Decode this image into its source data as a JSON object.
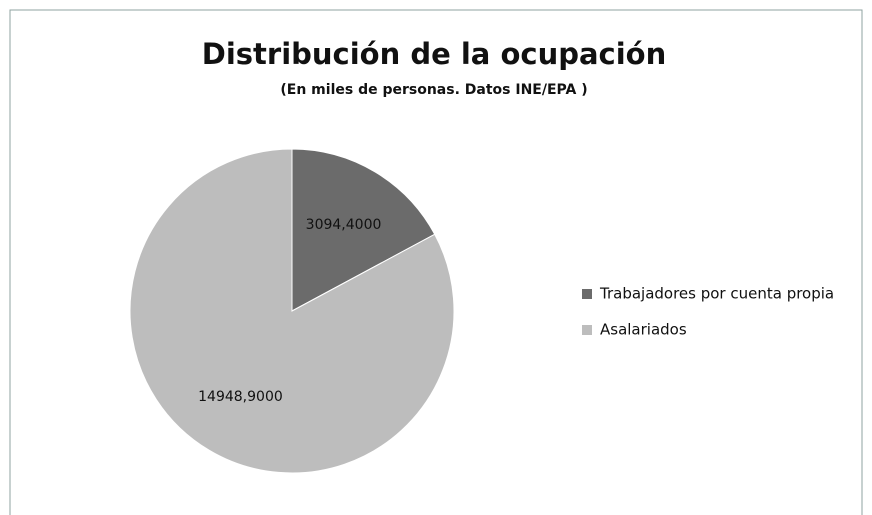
{
  "chart_data": {
    "type": "pie",
    "title": "Distribución de la ocupación",
    "subtitle": "(En miles de personas. Datos INE/EPA )",
    "categories": [
      "Trabajadores por cuenta propia",
      "Asalariados"
    ],
    "values": [
      3094.4,
      14948.9
    ],
    "value_labels": [
      "3094,4000",
      "14948,9000"
    ],
    "colors": [
      "#6b6b6b",
      "#bdbdbd"
    ],
    "legend": "right"
  }
}
